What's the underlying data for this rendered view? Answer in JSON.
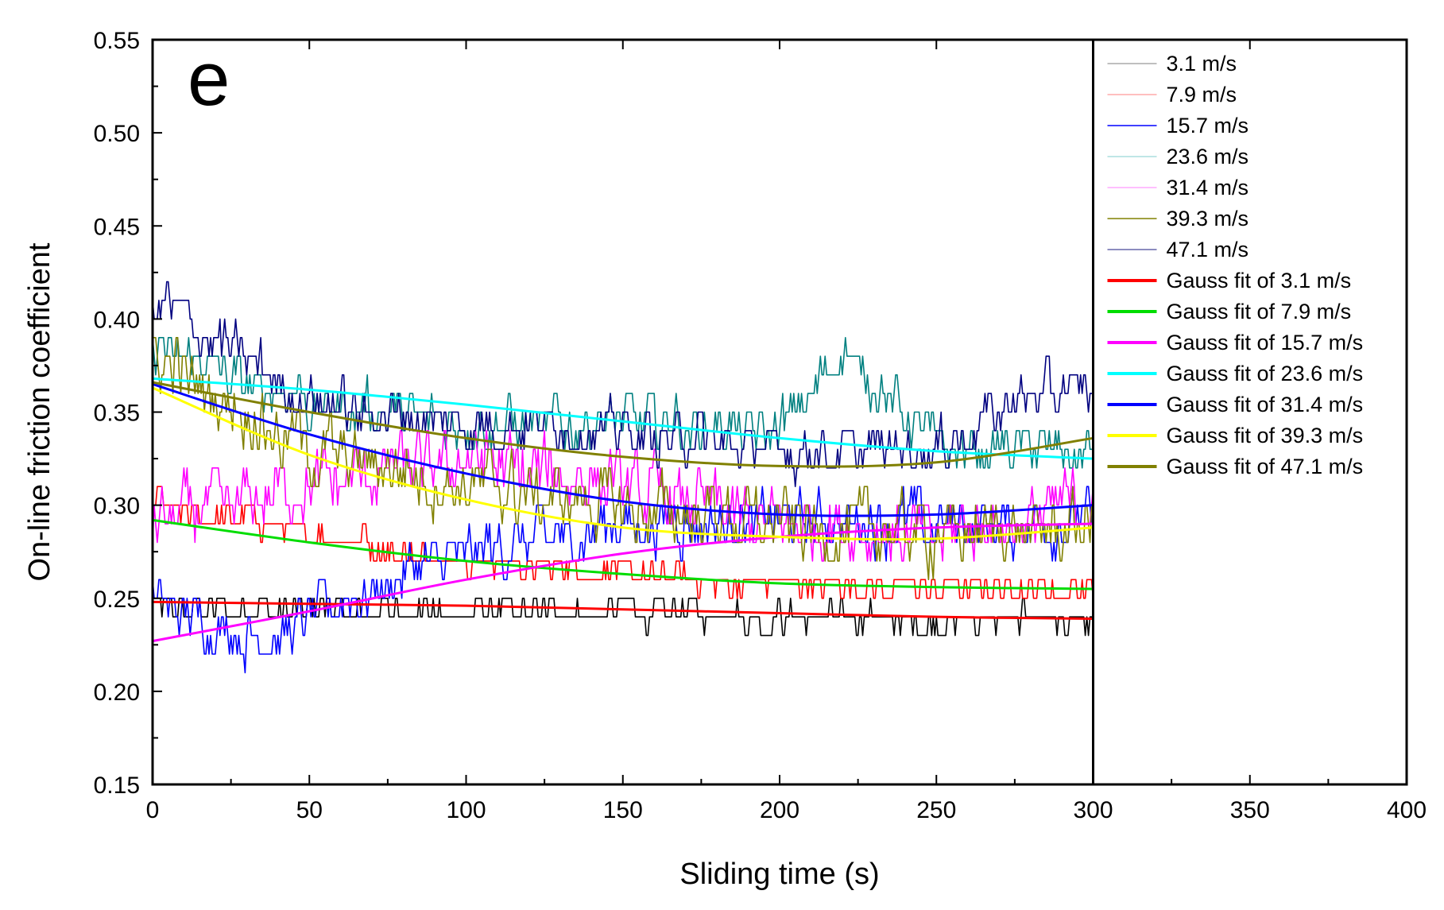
{
  "chart_data": {
    "type": "line",
    "panel_label": "e",
    "xlabel": "Sliding time (s)",
    "ylabel": "On-line friction coefficient",
    "xlim": [
      0,
      400
    ],
    "ylim": [
      0.15,
      0.55
    ],
    "xticks": [
      "0",
      "50",
      "100",
      "150",
      "200",
      "250",
      "300",
      "350",
      "400"
    ],
    "yticks": [
      "0.15",
      "0.20",
      "0.25",
      "0.30",
      "0.35",
      "0.40",
      "0.45",
      "0.50",
      "0.55"
    ],
    "data_end_x": 300,
    "legend_position": "right",
    "series": [
      {
        "name": "3.1 m/s",
        "kind": "raw",
        "color": "#000000",
        "mean": [
          [
            0,
            0.245
          ],
          [
            100,
            0.243
          ],
          [
            200,
            0.24
          ],
          [
            300,
            0.238
          ]
        ],
        "noise": 0.013
      },
      {
        "name": "7.9 m/s",
        "kind": "raw",
        "color": "#ff0000",
        "mean": [
          [
            0,
            0.3
          ],
          [
            50,
            0.285
          ],
          [
            100,
            0.27
          ],
          [
            150,
            0.262
          ],
          [
            200,
            0.258
          ],
          [
            300,
            0.255
          ]
        ],
        "noise": 0.013
      },
      {
        "name": "15.7 m/s",
        "kind": "raw",
        "color": "#0000ff",
        "mean": [
          [
            0,
            0.25
          ],
          [
            30,
            0.225
          ],
          [
            60,
            0.25
          ],
          [
            100,
            0.275
          ],
          [
            150,
            0.29
          ],
          [
            200,
            0.29
          ],
          [
            300,
            0.29
          ]
        ],
        "noise": 0.025
      },
      {
        "name": "23.6 m/s",
        "kind": "raw",
        "color": "#008080",
        "mean": [
          [
            0,
            0.385
          ],
          [
            50,
            0.355
          ],
          [
            100,
            0.345
          ],
          [
            150,
            0.345
          ],
          [
            200,
            0.34
          ],
          [
            220,
            0.385
          ],
          [
            250,
            0.33
          ],
          [
            300,
            0.33
          ]
        ],
        "noise": 0.022
      },
      {
        "name": "31.4 m/s",
        "kind": "raw",
        "color": "#ff00ff",
        "mean": [
          [
            0,
            0.29
          ],
          [
            50,
            0.31
          ],
          [
            100,
            0.325
          ],
          [
            150,
            0.31
          ],
          [
            200,
            0.29
          ],
          [
            250,
            0.285
          ],
          [
            300,
            0.3
          ]
        ],
        "noise": 0.03
      },
      {
        "name": "39.3 m/s",
        "kind": "raw",
        "color": "#808000",
        "mean": [
          [
            0,
            0.38
          ],
          [
            50,
            0.33
          ],
          [
            100,
            0.31
          ],
          [
            150,
            0.3
          ],
          [
            200,
            0.29
          ],
          [
            250,
            0.285
          ],
          [
            300,
            0.29
          ]
        ],
        "noise": 0.03
      },
      {
        "name": "47.1 m/s",
        "kind": "raw",
        "color": "#000080",
        "mean": [
          [
            0,
            0.41
          ],
          [
            50,
            0.355
          ],
          [
            100,
            0.345
          ],
          [
            150,
            0.34
          ],
          [
            200,
            0.33
          ],
          [
            250,
            0.33
          ],
          [
            280,
            0.36
          ],
          [
            300,
            0.365
          ]
        ],
        "noise": 0.022
      },
      {
        "name": "Gauss fit of 3.1 m/s",
        "kind": "fit",
        "color": "#ff0000",
        "x": [
          0,
          50,
          100,
          150,
          200,
          250,
          300
        ],
        "y": [
          0.248,
          0.247,
          0.246,
          0.244,
          0.242,
          0.24,
          0.239
        ]
      },
      {
        "name": "Gauss fit of 7.9 m/s",
        "kind": "fit",
        "color": "#00dd00",
        "x": [
          0,
          50,
          100,
          150,
          200,
          250,
          300
        ],
        "y": [
          0.292,
          0.28,
          0.27,
          0.263,
          0.258,
          0.256,
          0.255
        ]
      },
      {
        "name": "Gauss fit of 15.7 m/s",
        "kind": "fit",
        "color": "#ff00ff",
        "x": [
          0,
          50,
          100,
          150,
          200,
          250,
          300
        ],
        "y": [
          0.227,
          0.243,
          0.26,
          0.274,
          0.283,
          0.288,
          0.29
        ]
      },
      {
        "name": "Gauss fit of 23.6 m/s",
        "kind": "fit",
        "color": "#00ffff",
        "x": [
          0,
          50,
          100,
          150,
          200,
          250,
          300
        ],
        "y": [
          0.368,
          0.362,
          0.354,
          0.345,
          0.336,
          0.329,
          0.325
        ]
      },
      {
        "name": "Gauss fit of 31.4 m/s",
        "kind": "fit",
        "color": "#0000ff",
        "x": [
          0,
          50,
          100,
          150,
          200,
          250,
          300
        ],
        "y": [
          0.365,
          0.338,
          0.317,
          0.302,
          0.295,
          0.295,
          0.3
        ]
      },
      {
        "name": "Gauss fit of 39.3 m/s",
        "kind": "fit",
        "color": "#ffff00",
        "x": [
          0,
          50,
          100,
          150,
          200,
          250,
          300
        ],
        "y": [
          0.363,
          0.327,
          0.303,
          0.288,
          0.283,
          0.282,
          0.288
        ]
      },
      {
        "name": "Gauss fit of 47.1 m/s",
        "kind": "fit",
        "color": "#808000",
        "x": [
          0,
          50,
          100,
          150,
          200,
          250,
          300
        ],
        "y": [
          0.366,
          0.35,
          0.336,
          0.326,
          0.321,
          0.323,
          0.336
        ]
      }
    ],
    "legend": [
      {
        "label": "3.1 m/s",
        "color": "#aaaaaa",
        "width": 1.5
      },
      {
        "label": "7.9 m/s",
        "color": "#ffaaaa",
        "width": 1.5
      },
      {
        "label": "15.7 m/s",
        "color": "#0000ff",
        "width": 1.5
      },
      {
        "label": "23.6 m/s",
        "color": "#aadddd",
        "width": 1.5
      },
      {
        "label": "31.4 m/s",
        "color": "#ffaaff",
        "width": 1.5
      },
      {
        "label": "39.3 m/s",
        "color": "#808000",
        "width": 1.5
      },
      {
        "label": "47.1 m/s",
        "color": "#6666aa",
        "width": 1.5
      },
      {
        "label": "Gauss fit of 3.1 m/s",
        "color": "#ff0000",
        "width": 4
      },
      {
        "label": "Gauss fit of 7.9 m/s",
        "color": "#00dd00",
        "width": 4
      },
      {
        "label": "Gauss fit of 15.7 m/s",
        "color": "#ff00ff",
        "width": 4
      },
      {
        "label": "Gauss fit of 23.6 m/s",
        "color": "#00ffff",
        "width": 4
      },
      {
        "label": "Gauss fit of 31.4 m/s",
        "color": "#0000ff",
        "width": 4
      },
      {
        "label": "Gauss fit of 39.3 m/s",
        "color": "#ffff00",
        "width": 4
      },
      {
        "label": "Gauss fit of 47.1 m/s",
        "color": "#808000",
        "width": 4
      }
    ]
  }
}
